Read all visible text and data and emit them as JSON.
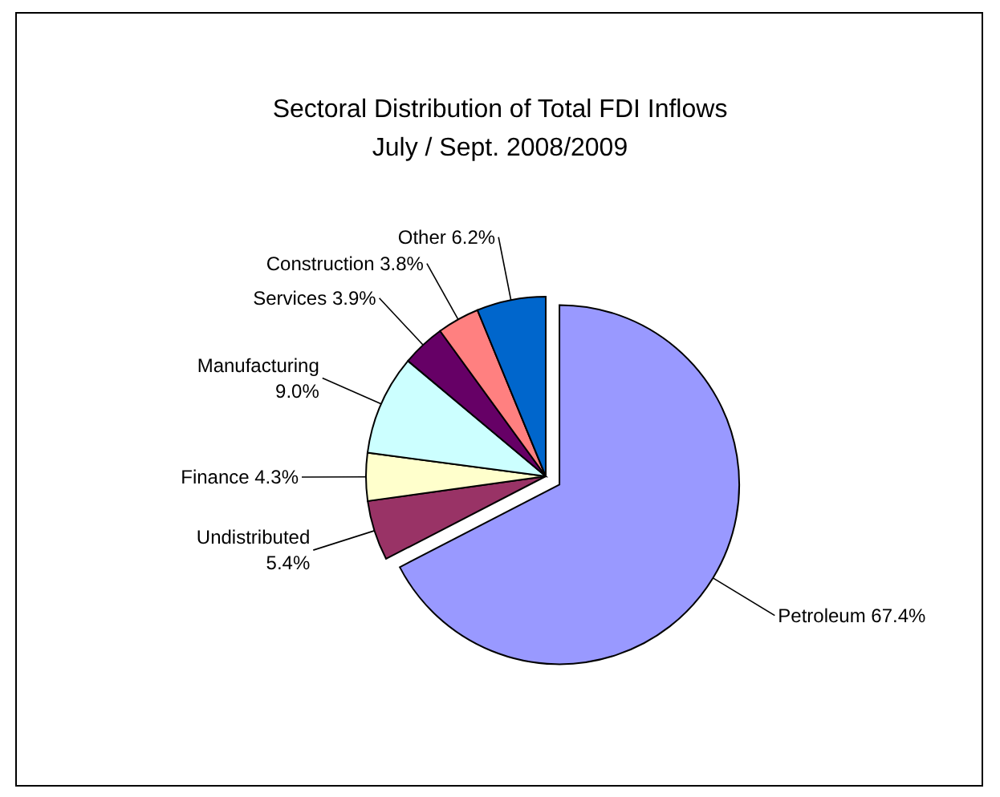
{
  "chart_data": {
    "type": "pie",
    "title": "Sectoral Distribution of Total FDI Inflows",
    "subtitle": "July / Sept. 2008/2009",
    "categories": [
      "Petroleum",
      "Undistributed",
      "Finance",
      "Manufacturing",
      "Services",
      "Construction",
      "Other"
    ],
    "values": [
      67.4,
      5.4,
      4.3,
      9.0,
      3.9,
      3.8,
      6.2
    ],
    "value_labels": [
      "67.4%",
      "5.4%",
      "4.3%",
      "9.0%",
      "3.9%",
      "3.8%",
      "6.2%"
    ],
    "colors": [
      "#9999ff",
      "#993366",
      "#ffffcc",
      "#ccffff",
      "#660066",
      "#ff8080",
      "#0066cc"
    ]
  }
}
